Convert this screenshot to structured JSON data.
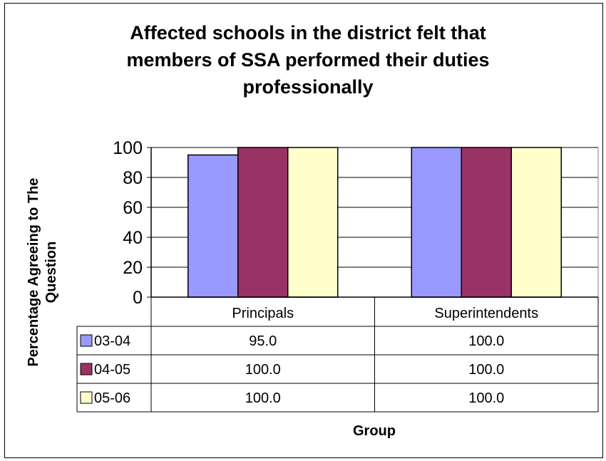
{
  "chart_data": {
    "type": "bar",
    "title_lines": [
      "Affected schools in the district felt  that",
      "members of SSA performed their duties",
      "professionally"
    ],
    "ylabel_lines": [
      "Percentage Agreeing to The",
      "Question"
    ],
    "xlabel": "Group",
    "categories": [
      "Principals",
      "Superintendents"
    ],
    "ylim": [
      0,
      100
    ],
    "yticks": [
      "0",
      "20",
      "40",
      "60",
      "80",
      "100"
    ],
    "grid": true,
    "legend_placement": "data-table-left",
    "series": [
      {
        "name": "03-04",
        "values": [
          95.0,
          100.0
        ],
        "labels": [
          "95.0",
          "100.0"
        ],
        "color": "#9999FF"
      },
      {
        "name": "04-05",
        "values": [
          100.0,
          100.0
        ],
        "labels": [
          "100.0",
          "100.0"
        ],
        "color": "#993366"
      },
      {
        "name": "05-06",
        "values": [
          100.0,
          100.0
        ],
        "labels": [
          "100.0",
          "100.0"
        ],
        "color": "#FFFFCC"
      }
    ],
    "plot_background": "#FFFFFF"
  }
}
